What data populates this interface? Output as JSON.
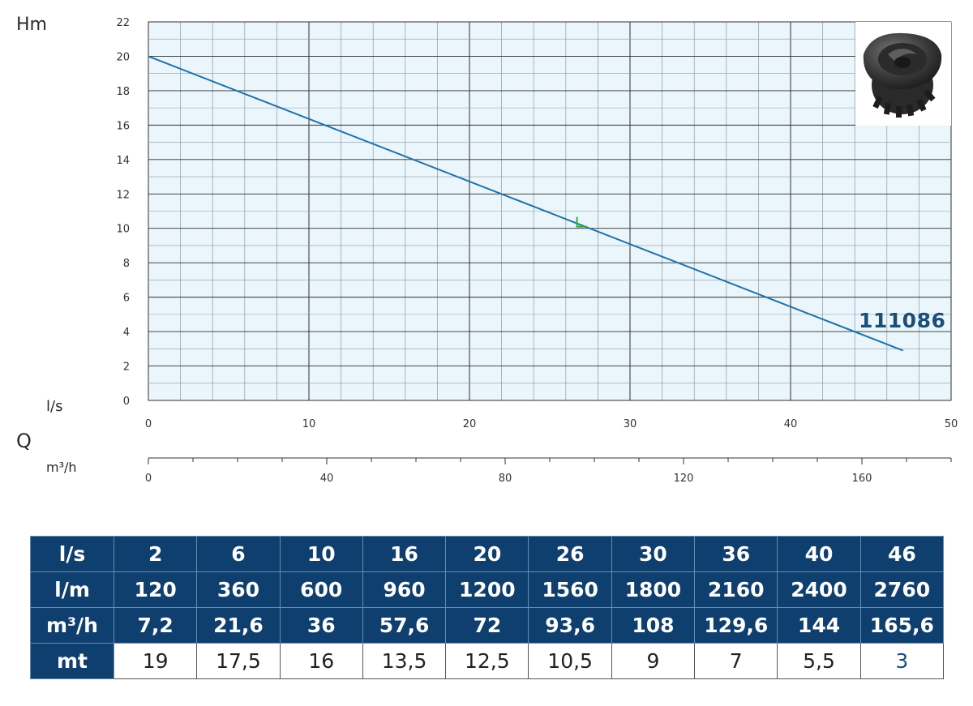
{
  "axis_labels": {
    "y": "Hm",
    "x_ls": "l/s",
    "q": "Q",
    "x_m3h": "m³/h"
  },
  "colors": {
    "plot_bg": "#eaf6fb",
    "curve": "#1f73a8",
    "grid_major": "#2f2f2f",
    "grid_minor": "#8a9aa4",
    "marker": "#2fae3a",
    "table_header": "#0f3f6e"
  },
  "series_label": "111086",
  "marker_icon": "operating-point-marker",
  "impeller_icon": "impeller-image",
  "chart_data": [
    {
      "type": "line",
      "title": "",
      "xlabel": "l/s",
      "ylabel": "Hm",
      "xlim": [
        0,
        50
      ],
      "ylim": [
        0,
        22
      ],
      "x_ticks": [
        "0",
        "10",
        "20",
        "30",
        "40",
        "50"
      ],
      "y_ticks": [
        "0",
        "2",
        "4",
        "6",
        "8",
        "10",
        "12",
        "14",
        "16",
        "18",
        "20",
        "22"
      ],
      "grid": true,
      "series": [
        {
          "name": "111086",
          "x": [
            0,
            47
          ],
          "y": [
            20,
            2.9
          ]
        }
      ],
      "operating_point": {
        "x": 27,
        "y": 10.1
      },
      "secondary_axis": {
        "label": "m³/h",
        "range": [
          0,
          180
        ],
        "ticks": [
          "0",
          "40",
          "80",
          "120",
          "160"
        ],
        "minor_step": 10
      }
    }
  ],
  "table": {
    "rows": [
      {
        "head": "l/s",
        "cells": [
          "2",
          "6",
          "10",
          "16",
          "20",
          "26",
          "30",
          "36",
          "40",
          "46"
        ]
      },
      {
        "head": "l/m",
        "cells": [
          "120",
          "360",
          "600",
          "960",
          "1200",
          "1560",
          "1800",
          "2160",
          "2400",
          "2760"
        ]
      },
      {
        "head": "m³/h",
        "cells": [
          "7,2",
          "21,6",
          "36",
          "57,6",
          "72",
          "93,6",
          "108",
          "129,6",
          "144",
          "165,6"
        ]
      },
      {
        "head": "mt",
        "cells": [
          "19",
          "17,5",
          "16",
          "13,5",
          "12,5",
          "10,5",
          "9",
          "7",
          "5,5",
          "3"
        ]
      }
    ]
  }
}
